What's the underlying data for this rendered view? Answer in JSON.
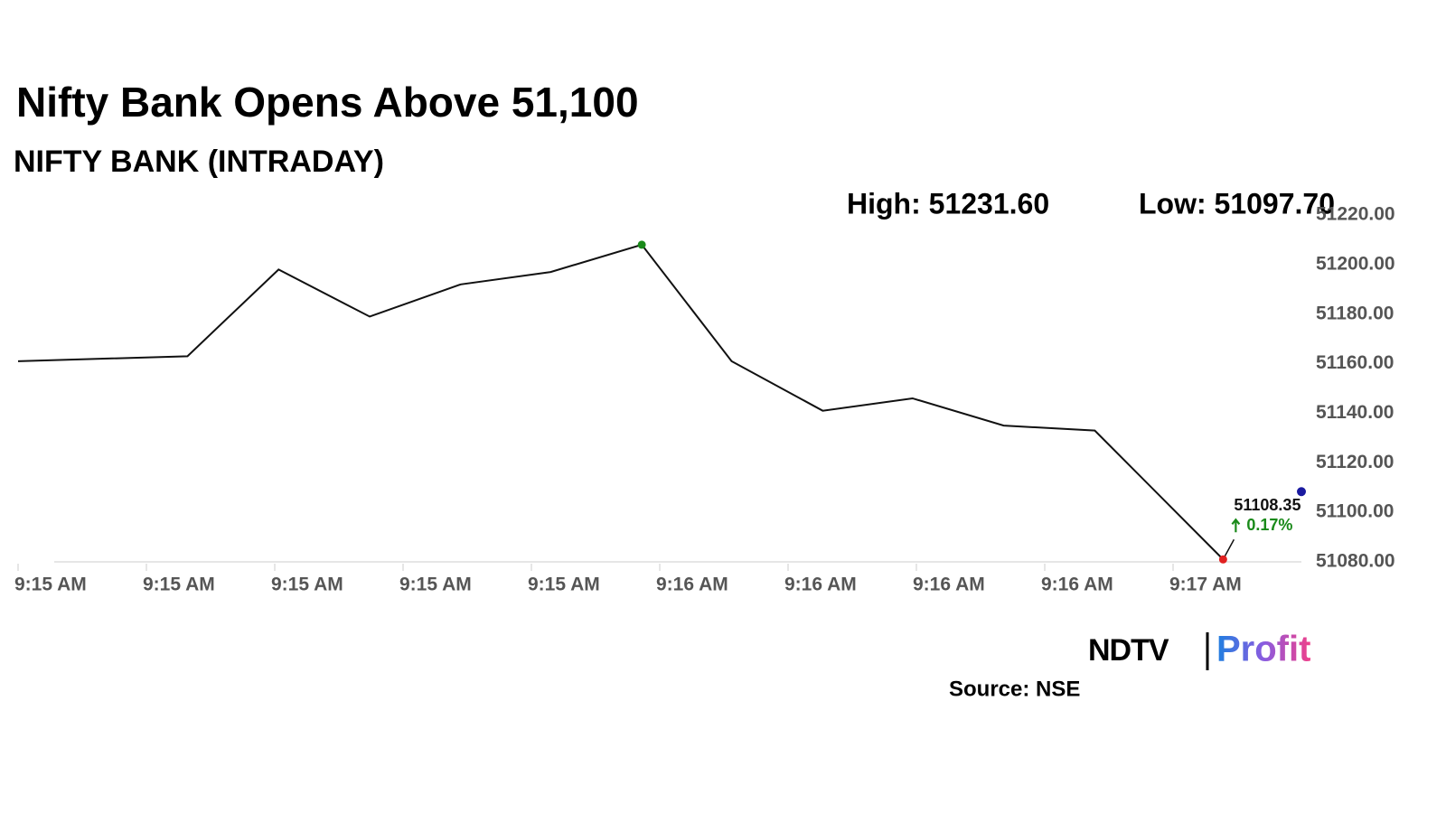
{
  "chart_data": {
    "type": "line",
    "title": "Nifty Bank Opens Above 51,100",
    "subtitle": "NIFTY BANK (INTRADAY)",
    "high_text": "High: 51231.60",
    "low_text": "Low: 51097.70",
    "x": [
      0,
      1.32,
      2.03,
      2.74,
      3.45,
      4.15,
      4.86,
      5.56,
      6.27,
      6.97,
      7.68,
      8.39,
      9.39
    ],
    "series": [
      {
        "name": "NIFTY BANK",
        "color": "#111111",
        "values": [
          51161,
          51163,
          51198,
          51179,
          51192,
          51197,
          51208,
          51161,
          51141,
          51146,
          51135,
          51133,
          51081
        ]
      }
    ],
    "high_marker_color": "#1a8a1a",
    "low_marker_color": "#e02020",
    "last_point": {
      "x": 10,
      "value": 51108.35,
      "value_label": "51108.35",
      "color": "#1a1aa0",
      "change": 0.17,
      "change_label": "0.17%",
      "change_color": "#1a8a1a"
    },
    "xlim": [
      0,
      10
    ],
    "xticks": [
      {
        "value": 0,
        "label": "9:15 AM"
      },
      {
        "value": 1,
        "label": "9:15 AM"
      },
      {
        "value": 2,
        "label": "9:15 AM"
      },
      {
        "value": 3,
        "label": "9:15 AM"
      },
      {
        "value": 4,
        "label": "9:15 AM"
      },
      {
        "value": 5,
        "label": "9:16 AM"
      },
      {
        "value": 6,
        "label": "9:16 AM"
      },
      {
        "value": 7,
        "label": "9:16 AM"
      },
      {
        "value": 8,
        "label": "9:16 AM"
      },
      {
        "value": 9,
        "label": "9:17 AM"
      }
    ],
    "ylim": [
      51080,
      51220
    ],
    "yticks": [
      {
        "value": 51080,
        "label": "51080.00"
      },
      {
        "value": 51100,
        "label": "51100.00"
      },
      {
        "value": 51120,
        "label": "51120.00"
      },
      {
        "value": 51140,
        "label": "51140.00"
      },
      {
        "value": 51160,
        "label": "51160.00"
      },
      {
        "value": 51180,
        "label": "51180.00"
      },
      {
        "value": 51200,
        "label": "51200.00"
      },
      {
        "value": 51220,
        "label": "51220.00"
      }
    ],
    "logo": {
      "left": "NDTV",
      "right": "Profit"
    },
    "source": "Source: NSE"
  }
}
